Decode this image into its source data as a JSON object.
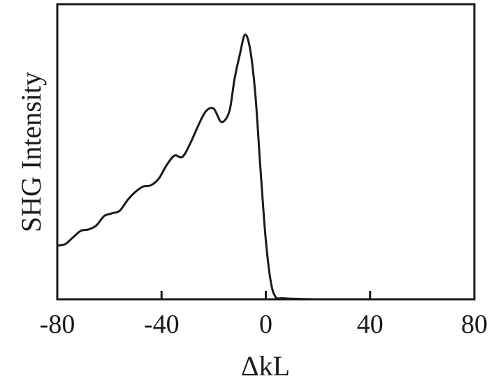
{
  "chart_data": {
    "type": "line",
    "title": "",
    "xlabel": "ΔkL",
    "ylabel": "SHG Intensity",
    "xlim": [
      -80,
      80
    ],
    "ylim": [
      0,
      1
    ],
    "x_ticks": [
      -80,
      -40,
      0,
      40,
      80
    ],
    "x_tick_labels": [
      "-80",
      "-40",
      "0",
      "40",
      "80"
    ],
    "grid": false,
    "line_color": "#1a1a1a",
    "series": [
      {
        "x": [
          -80,
          -77,
          -74,
          -71,
          -68,
          -65,
          -62,
          -59,
          -56,
          -53,
          -50,
          -47,
          -44,
          -41,
          -38,
          -35,
          -32,
          -29,
          -26,
          -23,
          -20,
          -17,
          -14,
          -12,
          -10,
          -8,
          -6,
          -4,
          -2,
          0,
          2,
          4,
          6,
          10,
          20,
          40,
          80
        ],
        "y": [
          0.2,
          0.205,
          0.23,
          0.255,
          0.26,
          0.275,
          0.31,
          0.32,
          0.33,
          0.37,
          0.4,
          0.42,
          0.425,
          0.45,
          0.5,
          0.535,
          0.53,
          0.58,
          0.645,
          0.7,
          0.71,
          0.66,
          0.7,
          0.82,
          0.91,
          0.985,
          0.93,
          0.76,
          0.48,
          0.22,
          0.06,
          0.005,
          0.004,
          0.002,
          0.0,
          0.0,
          0.0
        ]
      }
    ]
  }
}
